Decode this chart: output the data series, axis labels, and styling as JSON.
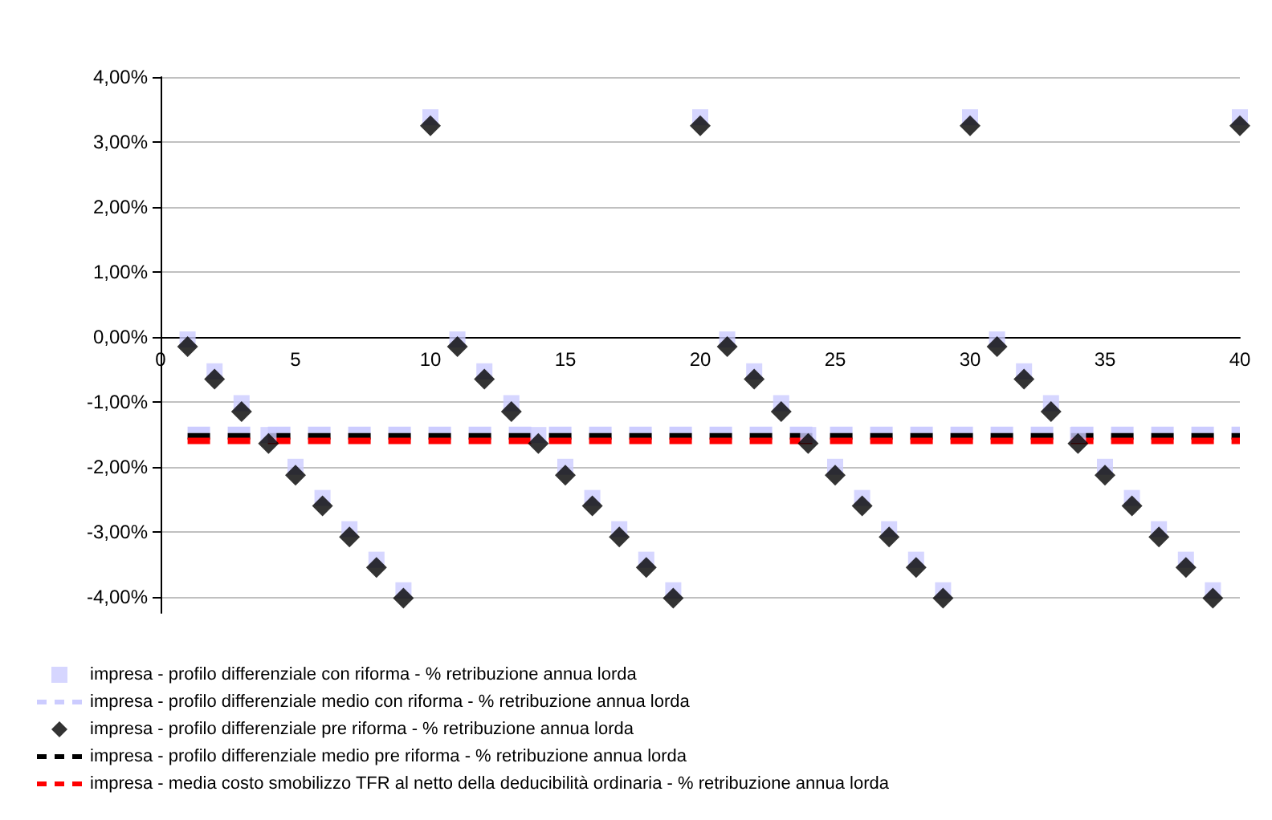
{
  "chart_data": {
    "type": "scatter",
    "x": [
      1,
      2,
      3,
      4,
      5,
      6,
      7,
      8,
      9,
      10,
      11,
      12,
      13,
      14,
      15,
      16,
      17,
      18,
      19,
      20,
      21,
      22,
      23,
      24,
      25,
      26,
      27,
      28,
      29,
      30,
      31,
      32,
      33,
      34,
      35,
      36,
      37,
      38,
      39,
      40
    ],
    "series": [
      {
        "name": "impresa - profilo differenziale con riforma - % retribuzione annua lorda",
        "marker": "square",
        "color": "#ccccff",
        "values": [
          -0.04,
          -0.53,
          -1.02,
          -1.51,
          -2.0,
          -2.48,
          -2.96,
          -3.43,
          -3.9,
          3.38,
          -0.04,
          -0.53,
          -1.02,
          -1.51,
          -2.0,
          -2.48,
          -2.96,
          -3.43,
          -3.9,
          3.38,
          -0.04,
          -0.53,
          -1.02,
          -1.51,
          -2.0,
          -2.48,
          -2.96,
          -3.43,
          -3.9,
          3.38,
          -0.04,
          -0.53,
          -1.02,
          -1.51,
          -2.0,
          -2.48,
          -2.96,
          -3.43,
          -3.9,
          3.38
        ]
      },
      {
        "name": "impresa - profilo differenziale medio con riforma - % retribuzione annua lorda",
        "type": "line",
        "marker": "none",
        "line_style": "dashed",
        "color": "#ccccff",
        "values": [
          -1.43,
          -1.43,
          -1.43,
          -1.43,
          -1.43,
          -1.43,
          -1.43,
          -1.43,
          -1.43,
          -1.43,
          -1.43,
          -1.43,
          -1.43,
          -1.43,
          -1.43,
          -1.43,
          -1.43,
          -1.43,
          -1.43,
          -1.43,
          -1.43,
          -1.43,
          -1.43,
          -1.43,
          -1.43,
          -1.43,
          -1.43,
          -1.43,
          -1.43,
          -1.43,
          -1.43,
          -1.43,
          -1.43,
          -1.43,
          -1.43,
          -1.43,
          -1.43,
          -1.43,
          -1.43,
          -1.43
        ]
      },
      {
        "name": "impresa - profilo differenziale pre riforma - % retribuzione annua lorda",
        "marker": "diamond",
        "color": "#000000",
        "values": [
          -0.15,
          -0.65,
          -1.15,
          -1.64,
          -2.13,
          -2.6,
          -3.08,
          -3.55,
          -4.02,
          3.25,
          -0.15,
          -0.65,
          -1.15,
          -1.64,
          -2.13,
          -2.6,
          -3.08,
          -3.55,
          -4.02,
          3.25,
          -0.15,
          -0.65,
          -1.15,
          -1.64,
          -2.13,
          -2.6,
          -3.08,
          -3.55,
          -4.02,
          3.25,
          -0.15,
          -0.65,
          -1.15,
          -1.64,
          -2.13,
          -2.6,
          -3.08,
          -3.55,
          -4.02,
          3.25
        ]
      },
      {
        "name": "impresa - profilo differenziale medio pre riforma - % retribuzione annua lorda",
        "type": "line",
        "marker": "none",
        "line_style": "dashed",
        "color": "#000000",
        "values": [
          -1.53,
          -1.53,
          -1.53,
          -1.53,
          -1.53,
          -1.53,
          -1.53,
          -1.53,
          -1.53,
          -1.53,
          -1.53,
          -1.53,
          -1.53,
          -1.53,
          -1.53,
          -1.53,
          -1.53,
          -1.53,
          -1.53,
          -1.53,
          -1.53,
          -1.53,
          -1.53,
          -1.53,
          -1.53,
          -1.53,
          -1.53,
          -1.53,
          -1.53,
          -1.53,
          -1.53,
          -1.53,
          -1.53,
          -1.53,
          -1.53,
          -1.53,
          -1.53,
          -1.53,
          -1.53,
          -1.53
        ]
      },
      {
        "name": "impresa - media costo smobilizzo TFR al netto della deducibilità ordinaria - % retribuzione annua lorda",
        "type": "line",
        "marker": "none",
        "line_style": "dashed",
        "color": "#ff0000",
        "values": [
          -1.6,
          -1.6,
          -1.6,
          -1.6,
          -1.6,
          -1.6,
          -1.6,
          -1.6,
          -1.6,
          -1.6,
          -1.6,
          -1.6,
          -1.6,
          -1.6,
          -1.6,
          -1.6,
          -1.6,
          -1.6,
          -1.6,
          -1.6,
          -1.6,
          -1.6,
          -1.6,
          -1.6,
          -1.6,
          -1.6,
          -1.6,
          -1.6,
          -1.6,
          -1.6,
          -1.6,
          -1.6,
          -1.6,
          -1.6,
          -1.6,
          -1.6,
          -1.6,
          -1.6,
          -1.6,
          -1.6
        ]
      }
    ],
    "xlim": [
      0,
      40
    ],
    "xticks": [
      0,
      5,
      10,
      15,
      20,
      25,
      30,
      35,
      40
    ],
    "ylim": [
      -4.25,
      4
    ],
    "yticks": [
      {
        "value": -4,
        "label": "-4,00%"
      },
      {
        "value": -3,
        "label": "-3,00%"
      },
      {
        "value": -2,
        "label": "-2,00%"
      },
      {
        "value": -1,
        "label": "-1,00%"
      },
      {
        "value": 0,
        "label": "0,00%"
      },
      {
        "value": 1,
        "label": "1,00%"
      },
      {
        "value": 2,
        "label": "2,00%"
      },
      {
        "value": 3,
        "label": "3,00%"
      },
      {
        "value": 4,
        "label": "4,00%"
      }
    ],
    "grid": "y",
    "legend": "bottom"
  }
}
